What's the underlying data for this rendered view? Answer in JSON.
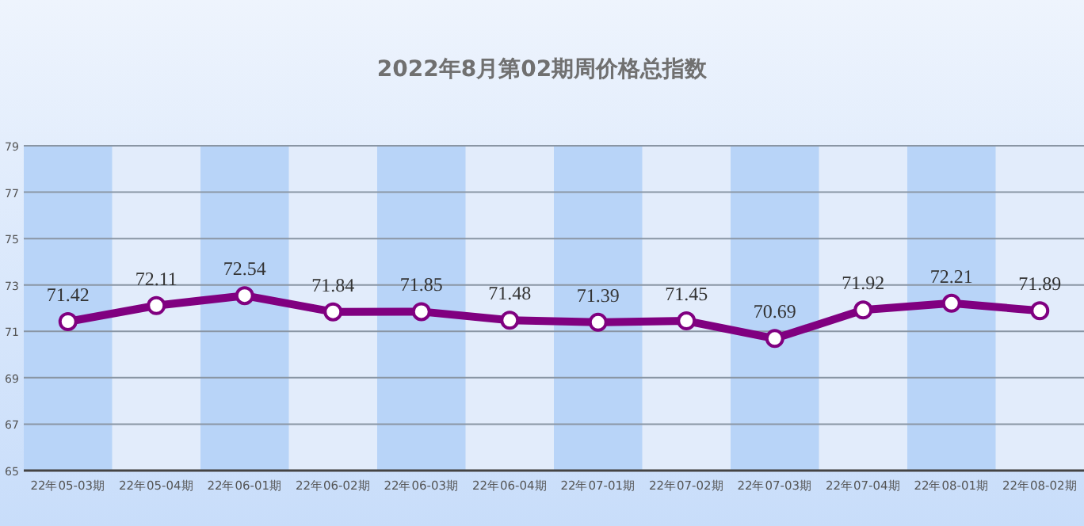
{
  "chart_data": {
    "type": "line",
    "title": "2022年8月第02期周价格总指数",
    "categories": [
      "22年05-03期",
      "22年05-04期",
      "22年06-01期",
      "22年06-02期",
      "22年06-03期",
      "22年06-04期",
      "22年07-01期",
      "22年07-02期",
      "22年07-03期",
      "22年07-04期",
      "22年08-01期",
      "22年08-02期"
    ],
    "series": [
      {
        "color": "#800080",
        "values": [
          71.42,
          72.11,
          72.54,
          71.84,
          71.85,
          71.48,
          71.39,
          71.45,
          70.69,
          71.92,
          72.21,
          71.89
        ]
      }
    ],
    "data_labels": true,
    "ylim": [
      65,
      79
    ],
    "yticks": [
      65,
      67,
      69,
      71,
      73,
      75,
      77,
      79
    ],
    "grid": "y",
    "marker": "circle",
    "bands": [
      {
        "axis": "x",
        "from": "22年05-03期",
        "to": "22年05-03期",
        "color": "#b8d4f8"
      },
      {
        "axis": "x",
        "from": "22年06-01期",
        "to": "22年06-01期",
        "color": "#b8d4f8"
      },
      {
        "axis": "x",
        "from": "22年06-03期",
        "to": "22年06-03期",
        "color": "#b8d4f8"
      },
      {
        "axis": "x",
        "from": "22年07-01期",
        "to": "22年07-01期",
        "color": "#b8d4f8"
      },
      {
        "axis": "x",
        "from": "22年07-03期",
        "to": "22年07-03期",
        "color": "#b8d4f8"
      },
      {
        "axis": "x",
        "from": "22年08-01期",
        "to": "22年08-01期",
        "color": "#b8d4f8"
      }
    ]
  }
}
